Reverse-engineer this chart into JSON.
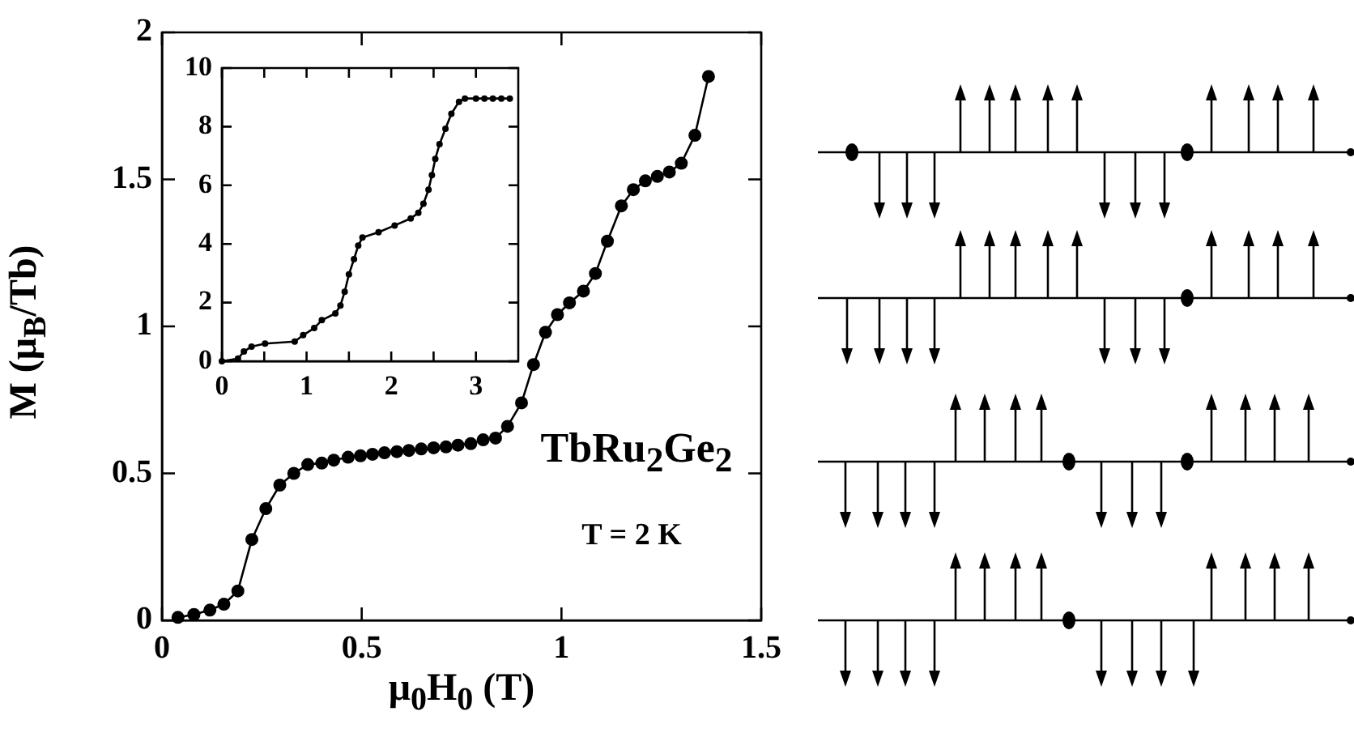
{
  "chart_data": [
    {
      "type": "line",
      "xlabel": "μ$_{0}$H$_{0}$ (T)",
      "ylabel": "M (μ$_{B}$/Tb)",
      "annotations": [
        "TbRu$_{2}$Ge$_{2}$",
        "T = 2 K"
      ],
      "marker": "circle",
      "x": [
        0.04,
        0.08,
        0.12,
        0.155,
        0.19,
        0.225,
        0.26,
        0.295,
        0.33,
        0.365,
        0.4,
        0.43,
        0.466,
        0.497,
        0.527,
        0.557,
        0.588,
        0.618,
        0.649,
        0.68,
        0.711,
        0.741,
        0.773,
        0.804,
        0.835,
        0.865,
        0.9,
        0.93,
        0.96,
        0.99,
        1.02,
        1.055,
        1.085,
        1.115,
        1.15,
        1.18,
        1.21,
        1.24,
        1.27,
        1.3,
        1.334,
        1.368
      ],
      "series": [
        {
          "color": "#000000",
          "values": [
            0.01,
            0.02,
            0.035,
            0.055,
            0.1,
            0.275,
            0.38,
            0.46,
            0.5,
            0.53,
            0.535,
            0.545,
            0.555,
            0.56,
            0.565,
            0.57,
            0.574,
            0.578,
            0.583,
            0.587,
            0.59,
            0.596,
            0.601,
            0.614,
            0.62,
            0.66,
            0.74,
            0.87,
            0.98,
            1.04,
            1.08,
            1.12,
            1.18,
            1.29,
            1.41,
            1.465,
            1.495,
            1.51,
            1.525,
            1.555,
            1.65,
            1.85
          ]
        }
      ],
      "xlim": [
        0,
        1.5
      ],
      "xticks": [
        0,
        0.5,
        1,
        1.5
      ],
      "ylim": [
        0,
        2
      ],
      "yticks": [
        0,
        0.5,
        1,
        1.5,
        2
      ]
    },
    {
      "type": "line",
      "marker": "circle",
      "x": [
        0,
        0.19,
        0.26,
        0.35,
        0.51,
        0.86,
        0.96,
        1.09,
        1.18,
        1.34,
        1.4,
        1.45,
        1.5,
        1.56,
        1.61,
        1.66,
        1.85,
        2.04,
        2.23,
        2.32,
        2.38,
        2.44,
        2.48,
        2.52,
        2.57,
        2.64,
        2.71,
        2.8,
        2.87,
        3.0,
        3.1,
        3.2,
        3.3,
        3.4
      ],
      "series": [
        {
          "color": "#000000",
          "values": [
            0,
            0.09,
            0.33,
            0.5,
            0.6,
            0.67,
            0.89,
            1.13,
            1.4,
            1.63,
            1.9,
            2.37,
            2.96,
            3.48,
            3.94,
            4.22,
            4.4,
            4.63,
            4.87,
            5.06,
            5.37,
            5.85,
            6.35,
            6.9,
            7.4,
            7.93,
            8.44,
            8.85,
            8.96,
            8.96,
            8.96,
            8.96,
            8.96,
            8.96
          ]
        }
      ],
      "xlim": [
        0,
        3.5
      ],
      "xticks": [
        0,
        {
          "value": 0.5,
          "label": null
        },
        1,
        {
          "value": 1.5,
          "label": null
        },
        2,
        {
          "value": 2.5,
          "label": null
        },
        3
      ],
      "ylim": [
        0,
        10
      ],
      "yticks": [
        0,
        2,
        4,
        6,
        8,
        10
      ]
    }
  ]
}
